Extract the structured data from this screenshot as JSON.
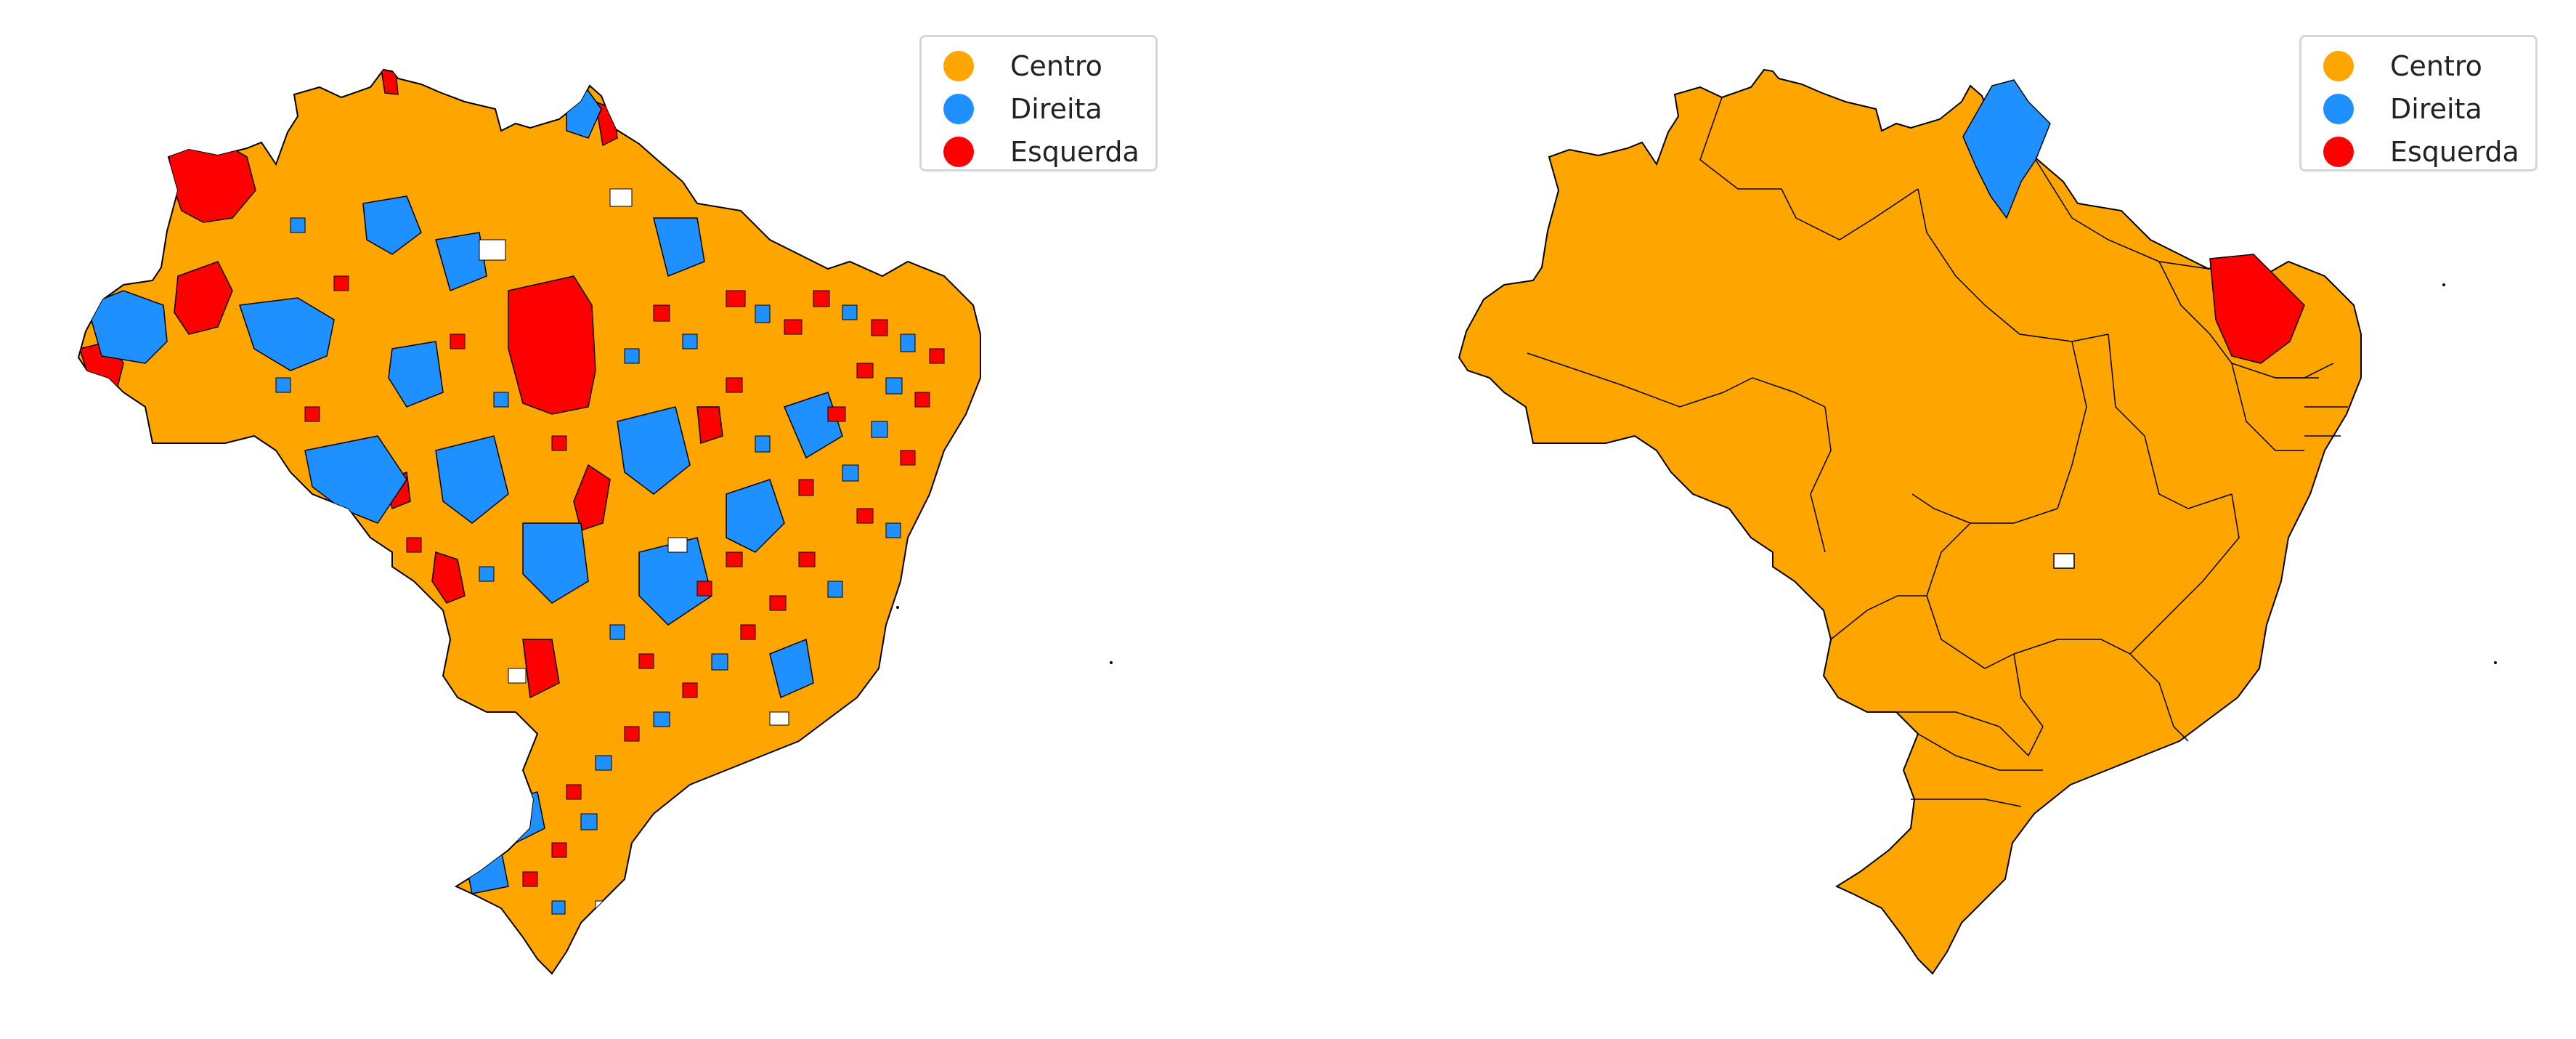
{
  "colors": {
    "centro": "#FFA500",
    "direita": "#1E90FF",
    "esquerda": "#FF0000",
    "border": "#000000",
    "missing": "#FFFFFF"
  },
  "panels": [
    {
      "legend": [
        {
          "label": "Centro",
          "color": "#FFA500"
        },
        {
          "label": "Direita",
          "color": "#1E90FF"
        },
        {
          "label": "Esquerda",
          "color": "#FF0000"
        }
      ]
    },
    {
      "legend": [
        {
          "label": "Centro",
          "color": "#FFA500"
        },
        {
          "label": "Direita",
          "color": "#1E90FF"
        },
        {
          "label": "Esquerda",
          "color": "#FF0000"
        }
      ]
    }
  ]
}
